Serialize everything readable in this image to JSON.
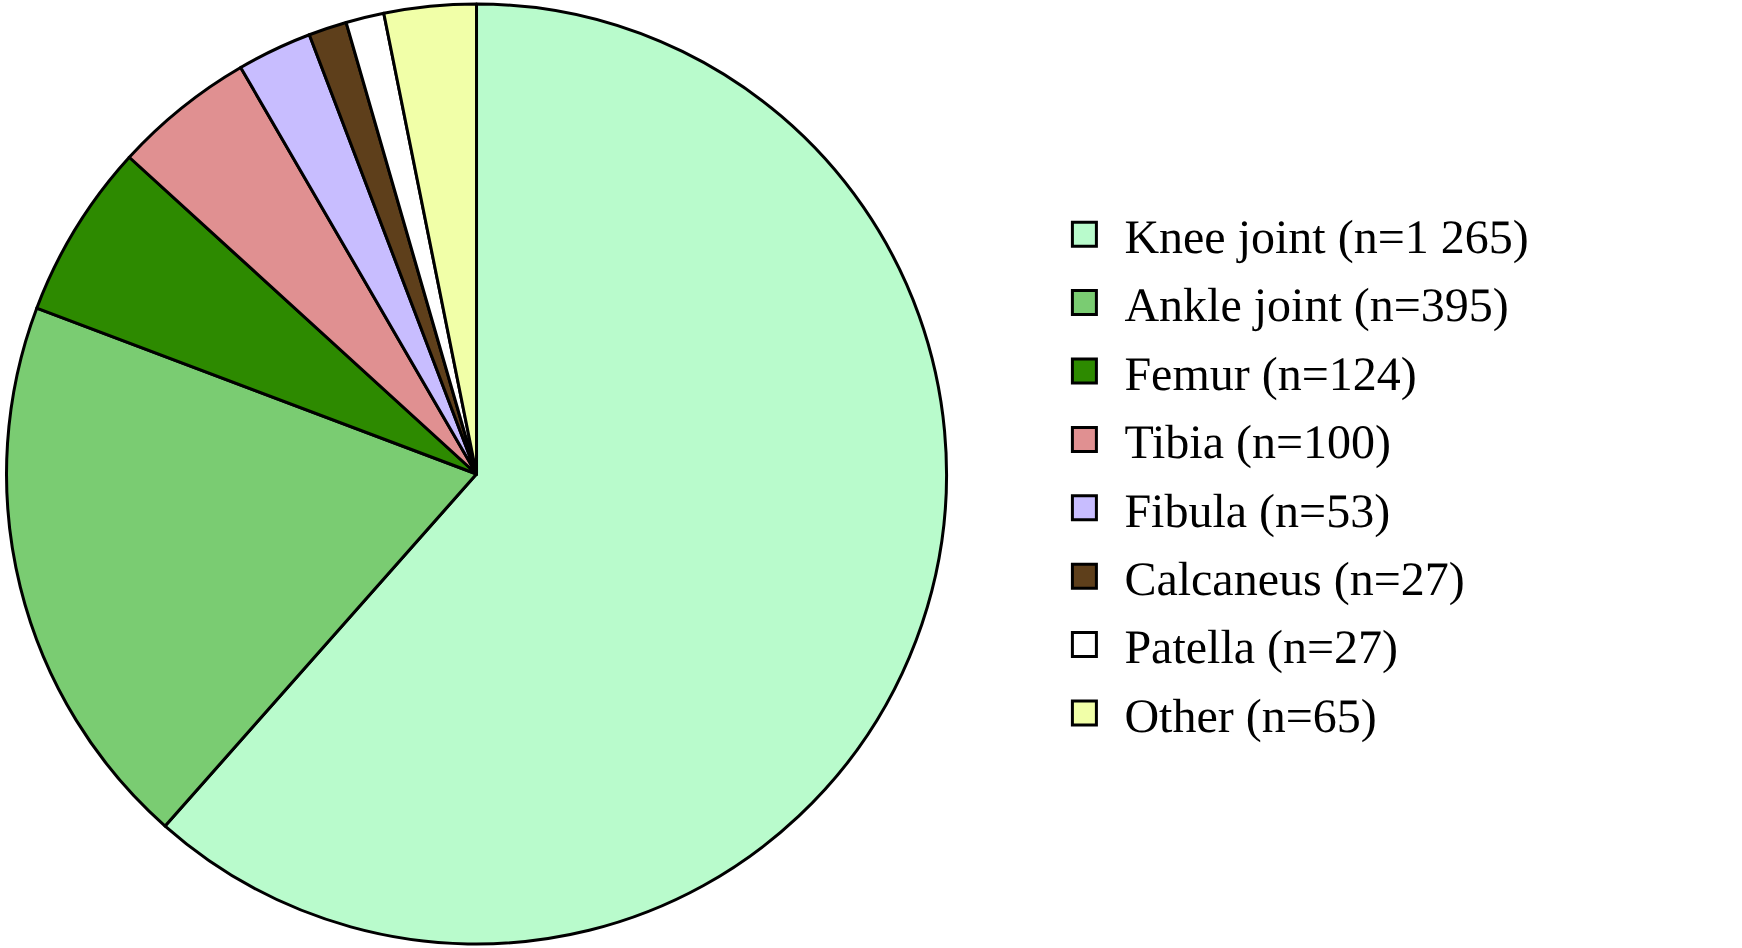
{
  "chart_data": {
    "type": "pie",
    "categories": [
      "Knee joint (n=1 265)",
      "Ankle joint (n=395)",
      "Femur (n=124)",
      "Tibia (n=100)",
      "Fibula (n=53)",
      "Calcaneus (n=27)",
      "Patella (n=27)",
      "Other (n=65)"
    ],
    "values": [
      1265,
      395,
      124,
      100,
      53,
      27,
      27,
      65
    ],
    "colors": [
      "#b9fbcc",
      "#7acc72",
      "#2d8a00",
      "#e09091",
      "#c8bdff",
      "#5e3f1b",
      "#ffffff",
      "#f1ffa8"
    ],
    "legend": "right"
  }
}
